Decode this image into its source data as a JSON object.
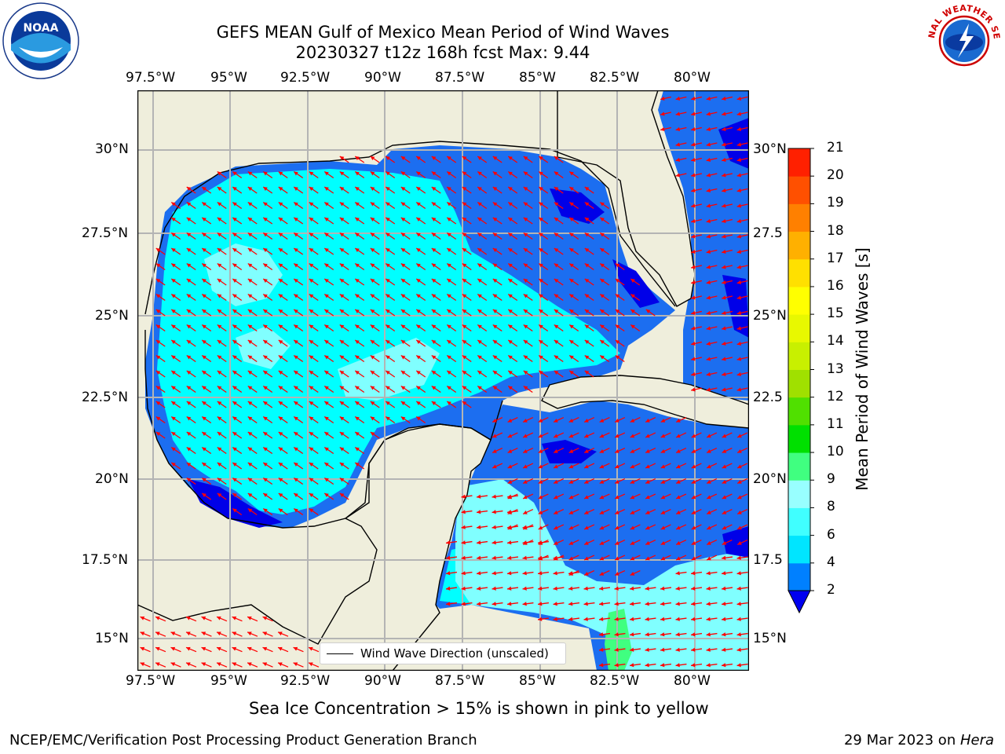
{
  "title": {
    "line1": "GEFS MEAN Gulf of Mexico Mean Period of Wind Waves",
    "line2": "20230327 t12z 168h fcst   Max: 9.44"
  },
  "logos": {
    "left": "noaa-logo",
    "right": "nws-logo",
    "left_text": "NOAA",
    "right_text": "NATIONAL WEATHER SERVICE"
  },
  "lon_labels": [
    "97.5°W",
    "95°W",
    "92.5°W",
    "90°W",
    "87.5°W",
    "85°W",
    "82.5°W",
    "80°W"
  ],
  "lat_labels_left": [
    "30°N",
    "27.5°N",
    "25°N",
    "22.5°N",
    "20°N",
    "17.5°N",
    "15°N"
  ],
  "lat_labels_right": [
    "30°N",
    "27.5",
    "25°N",
    "22.5",
    "20°N",
    "17.5",
    "15°N"
  ],
  "legend": {
    "label": "Wind Wave Direction (unscaled)"
  },
  "colorbar": {
    "label": "Mean Period of Wind Waves [s]",
    "ticks": [
      "2",
      "4",
      "6",
      "8",
      "9",
      "10",
      "11",
      "12",
      "13",
      "14",
      "15",
      "16",
      "17",
      "18",
      "19",
      "20",
      "21"
    ],
    "colors": [
      "#0080ff",
      "#00e5ff",
      "#40ffff",
      "#98ffff",
      "#40ff80",
      "#00e000",
      "#50e000",
      "#a0e000",
      "#c8f000",
      "#e8f800",
      "#ffff00",
      "#ffe000",
      "#ffb000",
      "#ff8000",
      "#ff5000",
      "#ff2000"
    ],
    "under_color": "#0000f0"
  },
  "map_colors": {
    "land": "#efeedc",
    "deep": "#0000e8",
    "blue": "#1c6ef0",
    "cyan": "#00ffff",
    "pale": "#80ffff",
    "arrow": "#ff0000",
    "grid": "#b4b4b4"
  },
  "note": "Sea Ice Concentration > 15% is shown in pink to yellow",
  "footer": {
    "left": "NCEP/EMC/Verification Post Processing Product Generation Branch",
    "right_date": "29 Mar 2023 on ",
    "right_host": "Hera"
  }
}
